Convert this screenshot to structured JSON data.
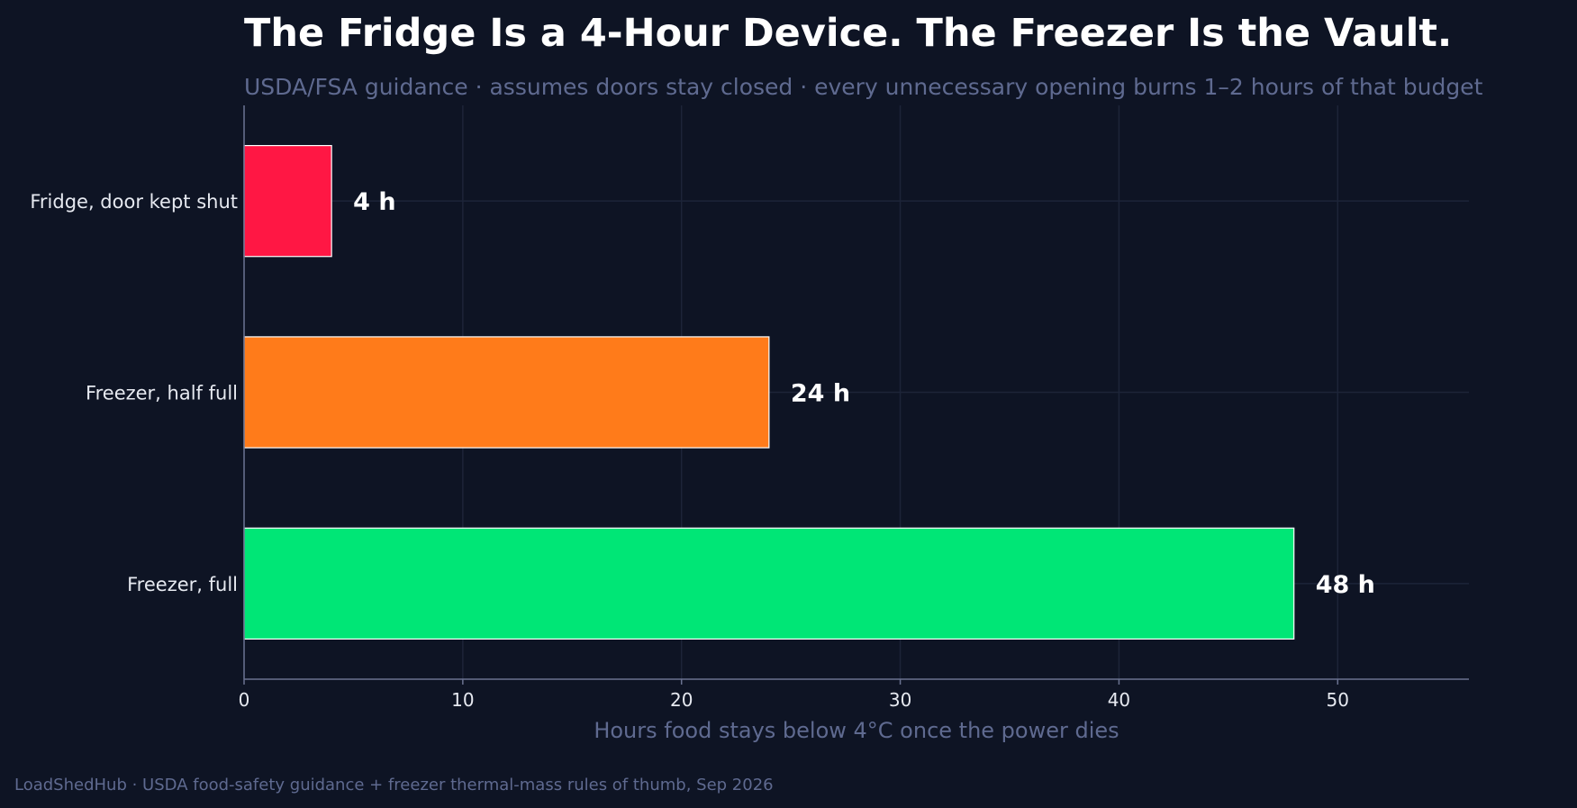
{
  "chart_data": {
    "type": "bar",
    "orientation": "horizontal",
    "title": "The Fridge Is a 4-Hour Device. The Freezer Is the Vault.",
    "subtitle": "USDA/FSA guidance · assumes doors stay closed · every unnecessary opening burns 1–2 hours of that budget",
    "categories": [
      "Fridge, door kept shut",
      "Freezer, half full",
      "Freezer, full"
    ],
    "values": [
      4,
      24,
      48
    ],
    "value_labels": [
      "4 h",
      "24 h",
      "48 h"
    ],
    "colors": [
      "#ff1744",
      "#ff7b1a",
      "#00e676"
    ],
    "xlabel": "Hours food stays below 4°C once the power dies",
    "ylabel": "",
    "xlim": [
      0,
      56
    ],
    "xticks": [
      0,
      10,
      20,
      30,
      40,
      50
    ],
    "grid": true,
    "footer": "LoadShedHub · USDA food-safety guidance + freezer thermal-mass rules of thumb, Sep 2026"
  }
}
